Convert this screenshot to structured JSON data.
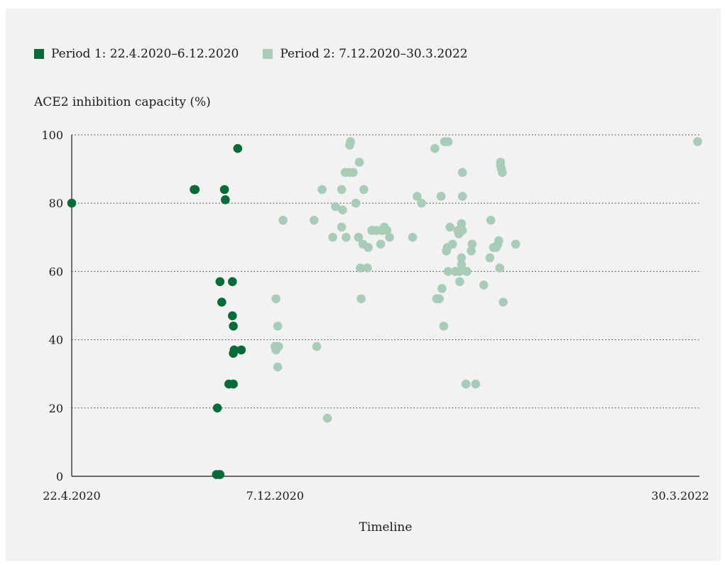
{
  "colors": {
    "period1": "#0a6b3a",
    "period2": "#a9ccb9",
    "background": "#f2f2f2"
  },
  "chart_data": {
    "type": "scatter",
    "ylabel": "ACE2 inhibition capacity (%)",
    "xlabel": "Timeline",
    "ylim": [
      0,
      100
    ],
    "xlim": [
      "2020-04-22",
      "2022-03-30"
    ],
    "yticks": [
      "0",
      "20",
      "40",
      "60",
      "80",
      "100"
    ],
    "xticks": [
      {
        "label": "22.4.2020",
        "date": "2020-04-22"
      },
      {
        "label": "7.12.2020",
        "date": "2020-12-07"
      },
      {
        "label": "30.3.2022",
        "date": "2022-03-30"
      }
    ],
    "grid": "horizontal-dotted",
    "legend_position": "top-left",
    "series": [
      {
        "name": "Period 1: 22.4.2020–6.12.2020",
        "x": [
          "2020-04-22",
          "2020-09-07",
          "2020-09-08",
          "2020-10-11",
          "2020-10-12",
          "2020-10-02",
          "2020-10-05",
          "2020-10-03",
          "2020-10-06",
          "2020-10-08",
          "2020-10-06",
          "2020-10-20",
          "2020-10-20",
          "2020-10-21",
          "2020-10-21",
          "2020-10-16",
          "2020-10-22",
          "2020-10-26",
          "2020-10-21",
          "2020-10-30"
        ],
        "y": [
          80,
          84,
          84,
          84,
          81,
          0.5,
          0.5,
          20,
          57,
          51,
          0.5,
          47,
          57,
          44,
          36,
          27,
          37,
          96,
          27,
          37
        ]
      },
      {
        "name": "Period 2: 7.12.2020–30.3.2022",
        "x": [
          "2020-12-08",
          "2020-12-10",
          "2020-12-16",
          "2020-12-09",
          "2020-12-08",
          "2020-12-07",
          "2020-12-10",
          "2020-12-11",
          "2021-01-20",
          "2021-01-23",
          "2021-01-29",
          "2021-02-04",
          "2021-02-10",
          "2021-02-13",
          "2021-02-20",
          "2021-02-20",
          "2021-02-21",
          "2021-02-24",
          "2021-02-25",
          "2021-03-01",
          "2021-03-01",
          "2021-03-02",
          "2021-03-05",
          "2021-03-08",
          "2021-03-11",
          "2021-03-11",
          "2021-03-12",
          "2021-03-13",
          "2021-03-14",
          "2021-03-17",
          "2021-03-16",
          "2021-03-21",
          "2021-03-22",
          "2021-03-26",
          "2021-03-30",
          "2021-03-31",
          "2021-04-05",
          "2021-04-06",
          "2021-04-07",
          "2021-04-09",
          "2021-04-12",
          "2021-04-15",
          "2021-05-11",
          "2021-05-16",
          "2021-05-21",
          "2021-06-05",
          "2021-06-07",
          "2021-06-10",
          "2021-06-12",
          "2021-06-13",
          "2021-06-15",
          "2021-06-16",
          "2021-06-18",
          "2021-06-19",
          "2021-06-20",
          "2021-06-20",
          "2021-06-22",
          "2021-06-25",
          "2021-06-28",
          "2021-07-01",
          "2021-07-02",
          "2021-07-03",
          "2021-07-03",
          "2021-07-04",
          "2021-07-05",
          "2021-07-06",
          "2021-07-05",
          "2021-07-05",
          "2021-07-06",
          "2021-07-06",
          "2021-07-10",
          "2021-07-11",
          "2021-07-16",
          "2021-07-17",
          "2021-07-21",
          "2021-07-30",
          "2021-08-06",
          "2021-08-07",
          "2021-08-10",
          "2021-08-13",
          "2021-08-15",
          "2021-08-16",
          "2021-08-17",
          "2021-08-18",
          "2021-08-18",
          "2021-08-19",
          "2021-08-20",
          "2021-08-21",
          "2021-09-04",
          "2022-03-28"
        ],
        "y": [
          52,
          44,
          75,
          38,
          37,
          38,
          32,
          38,
          75,
          38,
          84,
          17,
          70,
          79,
          84,
          73,
          78,
          89,
          70,
          89,
          97,
          98,
          89,
          80,
          70,
          70,
          92,
          61,
          52,
          84,
          68,
          61,
          67,
          72,
          72,
          72,
          68,
          72,
          72,
          73,
          72,
          70,
          70,
          82,
          80,
          96,
          52,
          52,
          82,
          55,
          44,
          98,
          66,
          67,
          60,
          98,
          73,
          68,
          60,
          72,
          71,
          57,
          60,
          72,
          74,
          72,
          62,
          64,
          82,
          89,
          27,
          60,
          66,
          68,
          27,
          56,
          64,
          75,
          67,
          67,
          68,
          69,
          61,
          92,
          91,
          90,
          89,
          51,
          68,
          98
        ]
      }
    ]
  }
}
